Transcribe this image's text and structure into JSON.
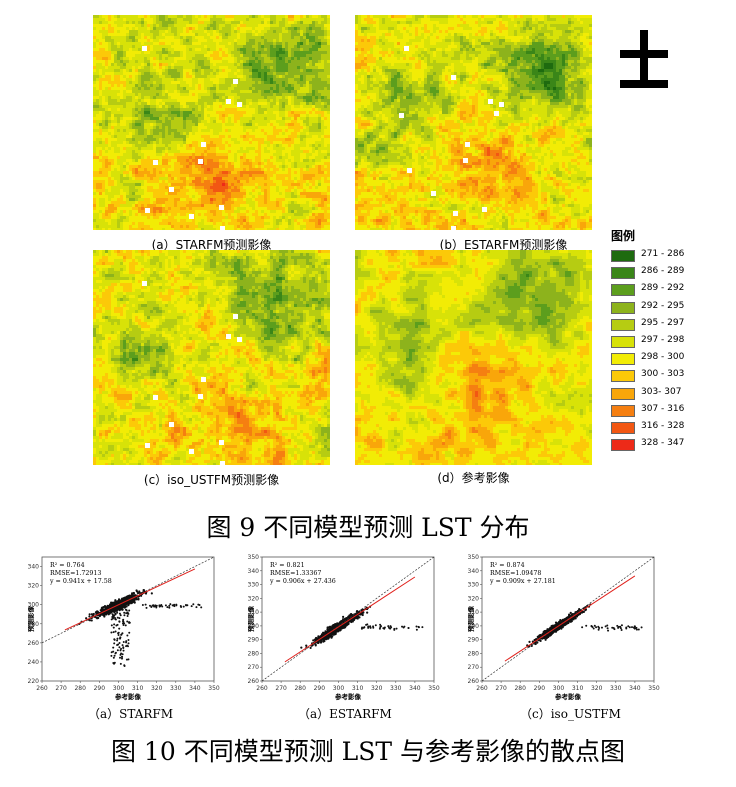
{
  "fig9": {
    "panels": [
      {
        "caption": "(a）STARFM预测影像"
      },
      {
        "caption": "(b）ESTARFM预测影像"
      },
      {
        "caption": "(c）iso_USTFM预测影像"
      },
      {
        "caption": "(d）参考影像"
      }
    ],
    "north_symbol": "north-arrow-icon",
    "legend": {
      "title": "图例",
      "items": [
        {
          "label": "271 - 286",
          "color": "#1e6b0f"
        },
        {
          "label": "286 - 289",
          "color": "#3a8618"
        },
        {
          "label": "289 - 292",
          "color": "#5c9e1d"
        },
        {
          "label": "292 - 295",
          "color": "#8db31c"
        },
        {
          "label": "295 - 297",
          "color": "#b6cc12"
        },
        {
          "label": "297 - 298",
          "color": "#d8e208"
        },
        {
          "label": "298 - 300",
          "color": "#f2ec05"
        },
        {
          "label": "300 - 303",
          "color": "#fcc908"
        },
        {
          "label": "303- 307",
          "color": "#f9a60a"
        },
        {
          "label": "307 - 316",
          "color": "#f57f11"
        },
        {
          "label": "316 - 328",
          "color": "#f25713"
        },
        {
          "label": "328 - 347",
          "color": "#ed2a18"
        }
      ]
    },
    "title": "图 9  不同模型预测 LST 分布"
  },
  "fig10": {
    "title": "图 10  不同模型预测 LST 与参考影像的散点图",
    "chart_data": [
      {
        "type": "scatter",
        "caption": "（a）STARFM",
        "xlabel": "参考影像",
        "ylabel": "预测影像",
        "xlim": [
          260,
          350
        ],
        "ylim": [
          220,
          350
        ],
        "xticks": [
          260,
          270,
          280,
          290,
          300,
          310,
          320,
          330,
          340,
          350
        ],
        "yticks": [
          220,
          240,
          260,
          280,
          300,
          320,
          340
        ],
        "annotations": [
          "R² = 0.764",
          "RMSE=1.72913",
          "y = 0.941x + 17.58"
        ],
        "fit": {
          "slope": 0.941,
          "intercept": 17.58
        }
      },
      {
        "type": "scatter",
        "caption": "（a）ESTARFM",
        "xlabel": "参考影像",
        "ylabel": "预测影像",
        "xlim": [
          260,
          350
        ],
        "ylim": [
          260,
          350
        ],
        "xticks": [
          260,
          270,
          280,
          290,
          300,
          310,
          320,
          330,
          340,
          350
        ],
        "yticks": [
          260,
          270,
          280,
          290,
          300,
          310,
          320,
          330,
          340,
          350
        ],
        "annotations": [
          "R² = 0.821",
          "RMSE=1.33367",
          "y = 0.906x + 27.436"
        ],
        "fit": {
          "slope": 0.906,
          "intercept": 27.436
        }
      },
      {
        "type": "scatter",
        "caption": "（c）iso_USTFM",
        "xlabel": "参考影像",
        "ylabel": "预测影像",
        "xlim": [
          260,
          350
        ],
        "ylim": [
          260,
          350
        ],
        "xticks": [
          260,
          270,
          280,
          290,
          300,
          310,
          320,
          330,
          340,
          350
        ],
        "yticks": [
          260,
          270,
          280,
          290,
          300,
          310,
          320,
          330,
          340,
          350
        ],
        "annotations": [
          "R² = 0.874",
          "RMSE=1.09478",
          "y = 0.909x + 27.181"
        ],
        "fit": {
          "slope": 0.909,
          "intercept": 27.181
        }
      }
    ]
  }
}
